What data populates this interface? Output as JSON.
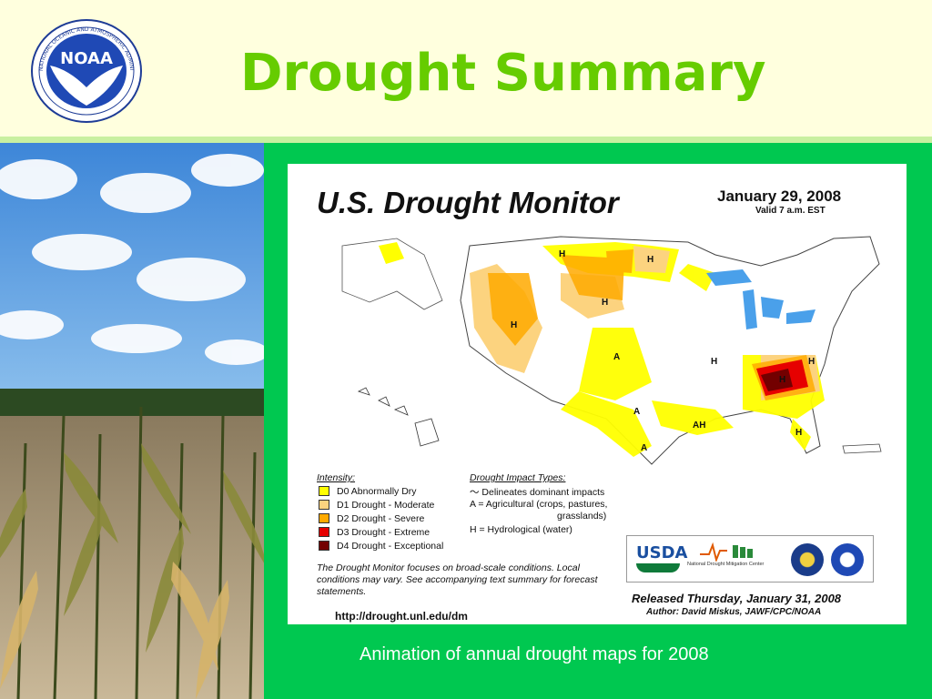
{
  "slide": {
    "title": "Drought Summary",
    "caption": "Animation of annual drought maps for 2008",
    "logo_text": "NOAA",
    "logo_ring_text": "NATIONAL OCEANIC AND ATMOSPHERIC ADMINISTRATION · U.S. DEPARTMENT OF COMMERCE"
  },
  "map": {
    "title": "U.S. Drought Monitor",
    "date": "January 29, 2008",
    "valid": "Valid 7 a.m. EST",
    "intensity_heading": "Intensity:",
    "intensity": [
      {
        "label": "D0 Abnormally Dry",
        "color": "#ffff00"
      },
      {
        "label": "D1 Drought - Moderate",
        "color": "#fcd37f"
      },
      {
        "label": "D2 Drought - Severe",
        "color": "#ffaa00"
      },
      {
        "label": "D3 Drought - Extreme",
        "color": "#e60000"
      },
      {
        "label": "D4 Drought - Exceptional",
        "color": "#730000"
      }
    ],
    "impact_heading": "Drought Impact Types:",
    "impacts": [
      "Delineates dominant impacts",
      "A = Agricultural (crops, pastures,",
      "grasslands)",
      "H = Hydrological (water)"
    ],
    "note": "The Drought Monitor focuses on broad-scale conditions. Local conditions may vary. See accompanying text summary for forecast statements.",
    "url": "http://drought.unl.edu/dm",
    "usda": "USDA",
    "ndmc": "National Drought Mitigation Center",
    "released": "Released Thursday, January 31, 2008",
    "author": "Author: David Miskus, JAWF/CPC/NOAA",
    "map_labels": [
      "H",
      "H",
      "H",
      "H",
      "A",
      "A",
      "AH",
      "H",
      "H",
      "A",
      "H",
      "H"
    ]
  }
}
